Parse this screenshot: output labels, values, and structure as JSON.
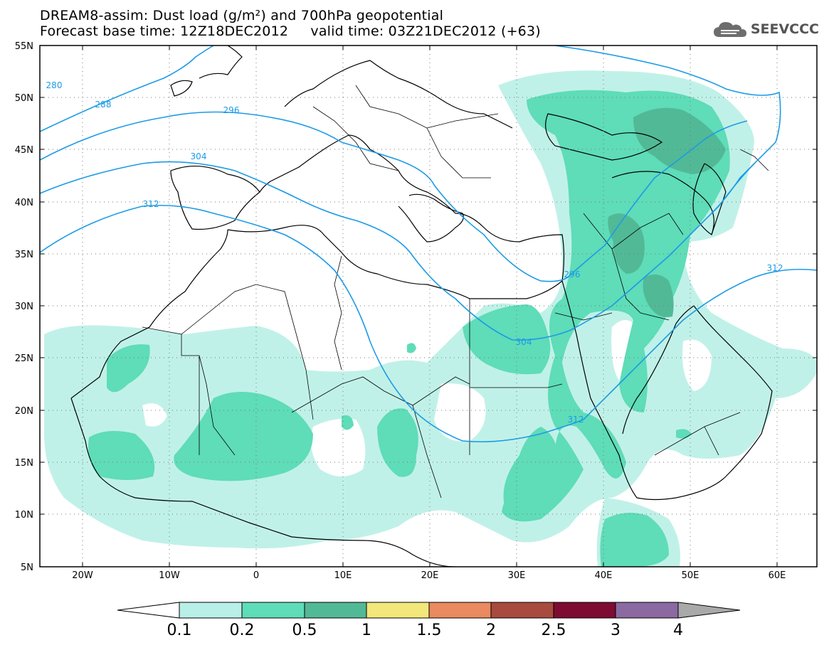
{
  "title": {
    "line1": "DREAM8-assim: Dust load (g/m²) and 700hPa geopotential",
    "line2_base": "Forecast base time: 12Z18DEC2012",
    "line2_valid": "valid time: 03Z21DEC2012 (+63)"
  },
  "logo": {
    "text": "SEEVCCC",
    "icon": "cloud-icon"
  },
  "axes": {
    "lon_labels": [
      "20W",
      "10W",
      "0",
      "10E",
      "20E",
      "30E",
      "40E",
      "50E",
      "60E"
    ],
    "lat_labels": [
      "55N",
      "50N",
      "45N",
      "40N",
      "35N",
      "30N",
      "25N",
      "20N",
      "15N",
      "10N",
      "5N"
    ]
  },
  "contour_labels": [
    "280",
    "288",
    "296",
    "304",
    "312",
    "296",
    "304",
    "312",
    "312"
  ],
  "colorbar": {
    "ticks": [
      "0.1",
      "0.2",
      "0.5",
      "1",
      "1.5",
      "2",
      "2.5",
      "3",
      "4"
    ],
    "colors": [
      "#b8efe6",
      "#5fdcb8",
      "#52b996",
      "#f2e77a",
      "#e98a60",
      "#a84b3e",
      "#7e0c32",
      "#8a6aa0",
      "#a9a9a9"
    ]
  },
  "colors": {
    "dust_light": "#c0f1e8",
    "dust_mid": "#5fdcb8",
    "dust_dark": "#52b996",
    "dust_darkest": "#4f9a84",
    "contour": "#1c9be6"
  }
}
